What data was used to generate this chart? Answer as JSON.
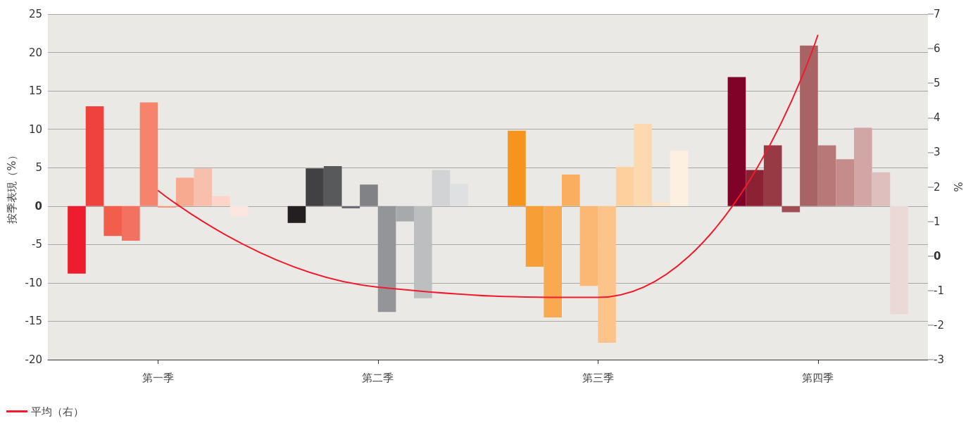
{
  "chart_data": {
    "type": "bar",
    "ylabel": "按季表現（%）",
    "y2label": "%",
    "categories": [
      "第一季",
      "第二季",
      "第三季",
      "第四季"
    ],
    "series": [
      {
        "colors": [
          "#ed1c2e",
          "#231f20",
          "#f7941d",
          "#7f0228"
        ],
        "values": [
          -8.8,
          -2.2,
          9.8,
          16.8
        ]
      },
      {
        "colors": [
          "#ef413d",
          "#414042",
          "#f79e37",
          "#8b2233"
        ],
        "values": [
          13.0,
          4.9,
          -7.9,
          4.7
        ]
      },
      {
        "colors": [
          "#f15e4c",
          "#58595b",
          "#f9a94f",
          "#973a44"
        ],
        "values": [
          -3.9,
          5.2,
          -14.5,
          7.9
        ]
      },
      {
        "colors": [
          "#f37160",
          "#6d6e71",
          "#faae5f",
          "#a04e54"
        ],
        "values": [
          -4.5,
          -0.3,
          4.1,
          -0.8
        ]
      },
      {
        "colors": [
          "#f6846c",
          "#808285",
          "#fbb874",
          "#a86464"
        ],
        "values": [
          13.5,
          2.8,
          -10.4,
          20.9
        ]
      },
      {
        "colors": [
          "#f8957c",
          "#939598",
          "#fcc48a",
          "#b77878"
        ],
        "values": [
          -0.2,
          -13.8,
          -17.8,
          7.9
        ]
      },
      {
        "colors": [
          "#f8aa91",
          "#a7a9ac",
          "#fdd09e",
          "#c48c8b"
        ],
        "values": [
          3.7,
          -2.0,
          5.1,
          6.1
        ]
      },
      {
        "colors": [
          "#f9bfad",
          "#bcbec0",
          "#fdd9b0",
          "#d3a6a6"
        ],
        "values": [
          4.9,
          -12.0,
          10.7,
          10.2
        ]
      },
      {
        "colors": [
          "#fcd5c8",
          "#d1d3d4",
          "#fee5c8",
          "#dfbfbd"
        ],
        "values": [
          1.3,
          4.7,
          0.5,
          4.4
        ]
      },
      {
        "colors": [
          "#fde6df",
          "#dfe0e2",
          "#fef0e0",
          "#ebd9d7"
        ],
        "values": [
          -1.3,
          2.9,
          7.2,
          -14.1
        ]
      },
      {
        "type": "line",
        "axis": "y2",
        "name": "平均（右）",
        "color": "#ed1c2e",
        "values": [
          1.9,
          -0.9,
          -1.2,
          6.4
        ]
      }
    ],
    "ylim": [
      -20,
      25
    ],
    "yticks": [
      -20,
      -15,
      -10,
      -5,
      0,
      5,
      10,
      15,
      20,
      25
    ],
    "y2lim": [
      -3,
      7
    ],
    "y2ticks": [
      -3,
      -2,
      -1,
      0,
      1,
      2,
      3,
      4,
      5,
      6,
      7
    ],
    "grid": "y",
    "legend": "bottom left",
    "marker": "none"
  }
}
